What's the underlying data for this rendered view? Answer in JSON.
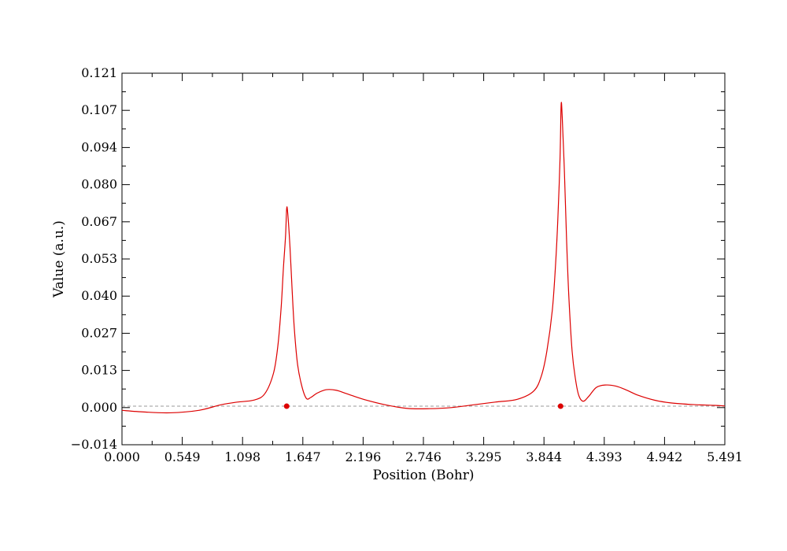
{
  "chart_data": {
    "type": "line",
    "xlabel": "Position (Bohr)",
    "ylabel": "Value (a.u.)",
    "xlim": [
      0.0,
      5.491
    ],
    "ylim": [
      -0.014,
      0.121
    ],
    "x_tick_labels": [
      "0.000",
      "0.549",
      "1.098",
      "1.647",
      "2.196",
      "2.746",
      "3.295",
      "3.844",
      "4.393",
      "4.942",
      "5.491"
    ],
    "y_tick_labels": [
      "−0.014",
      "0.000",
      "0.013",
      "0.027",
      "0.040",
      "0.053",
      "0.067",
      "0.080",
      "0.094",
      "0.107",
      "0.121"
    ],
    "grid": false,
    "zero_line": {
      "y": 0.0,
      "style": "dashed",
      "color": "#999999"
    },
    "series": [
      {
        "color": "#dd0000",
        "x": [
          0.0,
          0.2,
          0.44,
          0.7,
          0.9,
          1.05,
          1.2,
          1.3,
          1.38,
          1.42,
          1.45,
          1.47,
          1.49,
          1.5,
          1.51,
          1.53,
          1.55,
          1.57,
          1.6,
          1.64,
          1.68,
          1.72,
          1.78,
          1.86,
          1.95,
          2.05,
          2.2,
          2.4,
          2.6,
          2.8,
          3.0,
          3.2,
          3.4,
          3.6,
          3.75,
          3.82,
          3.87,
          3.92,
          3.95,
          3.97,
          3.99,
          4.0,
          4.01,
          4.03,
          4.05,
          4.07,
          4.1,
          4.13,
          4.16,
          4.2,
          4.25,
          4.32,
          4.4,
          4.5,
          4.6,
          4.7,
          4.85,
          5.0,
          5.2,
          5.4,
          5.491
        ],
        "y": [
          -0.0015,
          -0.0021,
          -0.0024,
          -0.0015,
          0.0005,
          0.0015,
          0.0022,
          0.0045,
          0.012,
          0.022,
          0.036,
          0.05,
          0.062,
          0.0718,
          0.07,
          0.058,
          0.042,
          0.028,
          0.015,
          0.007,
          0.0028,
          0.0032,
          0.0048,
          0.006,
          0.0058,
          0.0045,
          0.0025,
          0.0005,
          -0.0008,
          -0.0009,
          -0.0005,
          0.0005,
          0.0015,
          0.0025,
          0.0055,
          0.011,
          0.02,
          0.035,
          0.052,
          0.068,
          0.09,
          0.1095,
          0.105,
          0.085,
          0.06,
          0.04,
          0.02,
          0.01,
          0.004,
          0.0018,
          0.0035,
          0.0068,
          0.0077,
          0.0073,
          0.0058,
          0.004,
          0.0022,
          0.0012,
          0.0006,
          0.0003,
          0.0001
        ]
      }
    ],
    "markers": [
      {
        "x": 1.5,
        "y": 0.0,
        "color": "#dd0000"
      },
      {
        "x": 3.995,
        "y": 0.0,
        "color": "#dd0000"
      }
    ]
  }
}
